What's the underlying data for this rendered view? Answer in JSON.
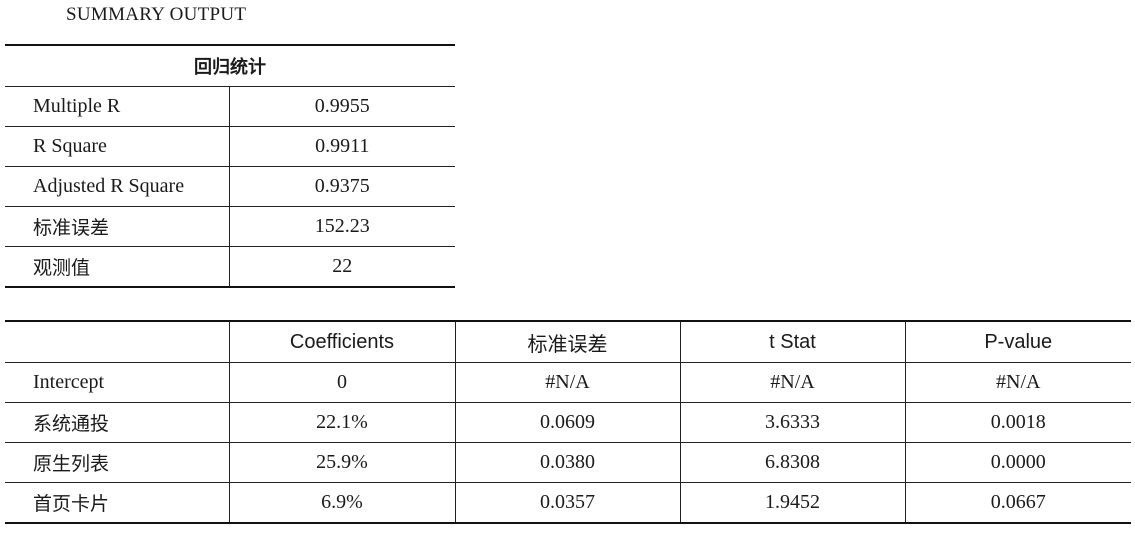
{
  "title": "SUMMARY OUTPUT",
  "regression_stats": {
    "header": "回归统计",
    "rows": [
      {
        "label": "Multiple R",
        "value": "0.9955"
      },
      {
        "label": "R Square",
        "value": "0.9911"
      },
      {
        "label": "Adjusted R Square",
        "value": "0.9375"
      },
      {
        "label": "标准误差",
        "value": "152.23"
      },
      {
        "label": "观测值",
        "value": "22"
      }
    ]
  },
  "coefficients": {
    "headers": [
      "",
      "Coefficients",
      "标准误差",
      "t Stat",
      "P-value"
    ],
    "rows": [
      [
        "Intercept",
        "0",
        "#N/A",
        "#N/A",
        "#N/A"
      ],
      [
        "系统通投",
        "22.1%",
        "0.0609",
        "3.6333",
        "0.0018"
      ],
      [
        "原生列表",
        "25.9%",
        "0.0380",
        "6.8308",
        "0.0000"
      ],
      [
        "首页卡片",
        "6.9%",
        "0.0357",
        "1.9452",
        "0.0667"
      ]
    ]
  }
}
